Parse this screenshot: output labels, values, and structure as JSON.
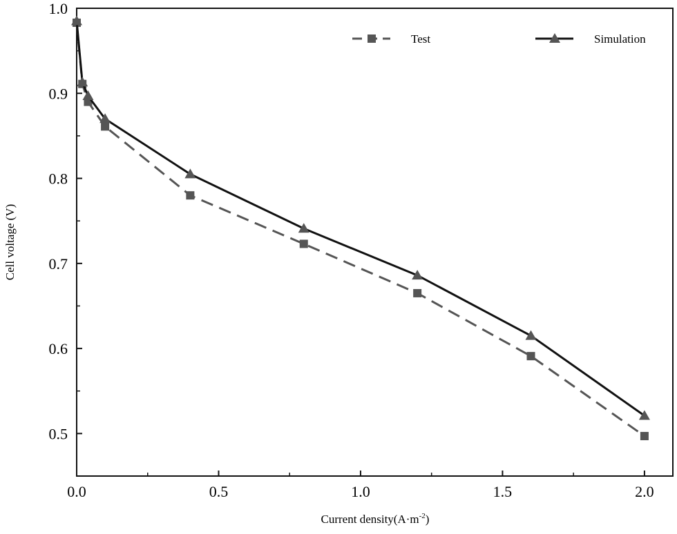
{
  "chart_data": {
    "type": "line",
    "title": "",
    "xlabel": "Current density(A·m",
    "xlabel_sup": "-2",
    "xlabel_end": ")",
    "ylabel": "Cell voltage (V)",
    "xlim": [
      0,
      2.1
    ],
    "ylim": [
      0.45,
      1.0
    ],
    "xticks": [
      0.0,
      0.5,
      1.0,
      1.5,
      2.0
    ],
    "xtick_labels": [
      "0.0",
      "0.5",
      "1.0",
      "1.5",
      "2.0"
    ],
    "yticks": [
      0.5,
      0.6,
      0.7,
      0.8,
      0.9,
      1.0
    ],
    "ytick_labels": [
      "0.5",
      "0.6",
      "0.7",
      "0.8",
      "0.9",
      "1.0"
    ],
    "grid": false,
    "legend_position": "top",
    "series": [
      {
        "name": "Test",
        "marker": "square",
        "line": "dashed",
        "color": "#555555",
        "x": [
          0.0,
          0.02,
          0.04,
          0.1,
          0.4,
          0.8,
          1.2,
          1.6,
          2.0
        ],
        "y": [
          0.983,
          0.911,
          0.89,
          0.861,
          0.78,
          0.723,
          0.665,
          0.591,
          0.497
        ]
      },
      {
        "name": "Simulation",
        "marker": "triangle",
        "line": "solid",
        "color": "#111111",
        "x": [
          0.0,
          0.02,
          0.04,
          0.1,
          0.4,
          0.8,
          1.2,
          1.6,
          2.0
        ],
        "y": [
          0.985,
          0.913,
          0.897,
          0.87,
          0.805,
          0.741,
          0.686,
          0.615,
          0.521
        ]
      }
    ]
  }
}
